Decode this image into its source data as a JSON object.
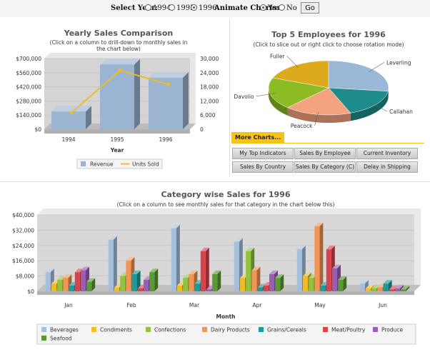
{
  "controls": {
    "select_year_label": "Select Year:",
    "years": [
      {
        "label": "1994",
        "selected": false
      },
      {
        "label": "1995",
        "selected": false
      },
      {
        "label": "1996",
        "selected": true
      }
    ],
    "animate_label": "Animate Charts:",
    "animate_options": [
      {
        "label": "Yes",
        "selected": true
      },
      {
        "label": "No",
        "selected": false
      }
    ],
    "go_label": "Go"
  },
  "yearly": {
    "title": "Yearly Sales Comparison",
    "subtitle_line1": "(Click on a column to drill-down to monthly sales in",
    "subtitle_line2": "the chart below)"
  },
  "employees": {
    "title": "Top 5 Employees for 1996",
    "subtitle": "(Click to slice out or right click to choose rotation mode)"
  },
  "more_charts": {
    "header": "More Charts...",
    "buttons": [
      "My Top Indicators",
      "Sales By Employee",
      "Current Inventory",
      "Sales By Country",
      "Sales By Category (C)",
      "Delay in Shipping"
    ]
  },
  "category": {
    "title": "Category wise Sales for 1996",
    "subtitle": "(Click on a column to see monthly sales for that category in the chart below this)"
  },
  "colors": {
    "accent": "#f6c417",
    "revenue": "#9ab4d2",
    "units": "#f0bc2c"
  },
  "chart_data": [
    {
      "type": "bar",
      "title": "Yearly Sales Comparison",
      "subtitle": "(Click on a column to drill-down to monthly sales in the chart below)",
      "categories": [
        "1994",
        "1995",
        "1996"
      ],
      "xlabel": "Year",
      "ylim": [
        0,
        700000
      ],
      "y_ticks": [
        "$0",
        "$140,000",
        "$280,000",
        "$420,000",
        "$560,000",
        "$700,000"
      ],
      "y2lim": [
        0,
        30000
      ],
      "y2_ticks": [
        "0",
        "6,000",
        "12,000",
        "18,000",
        "24,000",
        "30,000"
      ],
      "series": [
        {
          "name": "Revenue",
          "type": "bar",
          "axis": "primary",
          "values": [
            175000,
            640000,
            510000
          ]
        },
        {
          "name": "Units Sold",
          "type": "line",
          "axis": "secondary",
          "values": [
            7000,
            25000,
            19000
          ]
        }
      ],
      "legend": "bottom",
      "grid": true
    },
    {
      "type": "pie",
      "title": "Top 5 Employees for 1996",
      "subtitle": "(Click to slice out or right click to choose rotation mode)",
      "series": [
        {
          "name": "Leverling",
          "value": 27,
          "color": "#9ab8d6"
        },
        {
          "name": "Callahan",
          "value": 17,
          "color": "#1e8c8c"
        },
        {
          "name": "Peacock",
          "value": 18,
          "color": "#f3a37d"
        },
        {
          "name": "Davolio",
          "value": 19,
          "color": "#8cbb24"
        },
        {
          "name": "Fuller",
          "value": 19,
          "color": "#dcaa1c"
        }
      ]
    },
    {
      "type": "bar",
      "title": "Category wise Sales for 1996",
      "subtitle": "(Click on a column to see monthly sales for that category in the chart below this)",
      "categories": [
        "Jan",
        "Feb",
        "Mar",
        "Apr",
        "May",
        "Jun"
      ],
      "xlabel": "Month",
      "ylim": [
        0,
        40000
      ],
      "y_ticks": [
        "$0",
        "$8,000",
        "$16,000",
        "$24,000",
        "$32,000",
        "$40,000"
      ],
      "series": [
        {
          "name": "Beverages",
          "color": "#a4c0dd",
          "values": [
            10000,
            27000,
            33000,
            26000,
            22000,
            4000
          ]
        },
        {
          "name": "Condiments",
          "color": "#f0bc2c",
          "values": [
            4000,
            2000,
            3000,
            7000,
            8000,
            1500
          ]
        },
        {
          "name": "Confections",
          "color": "#92c23e",
          "values": [
            6000,
            8000,
            7000,
            21000,
            7000,
            1500
          ]
        },
        {
          "name": "Dairy Products",
          "color": "#f29556",
          "values": [
            7000,
            16000,
            9000,
            11000,
            34000,
            2000
          ]
        },
        {
          "name": "Grains/Cereals",
          "color": "#1f9a9a",
          "values": [
            3000,
            9000,
            4000,
            2000,
            3000,
            4000
          ]
        },
        {
          "name": "Meat/Poultry",
          "color": "#d9444c",
          "values": [
            10000,
            1500,
            21000,
            3000,
            22000,
            1000
          ]
        },
        {
          "name": "Produce",
          "color": "#9a5fb4",
          "values": [
            11000,
            6000,
            1000,
            9000,
            12000,
            1500
          ]
        },
        {
          "name": "Seafood",
          "color": "#5a9a34",
          "values": [
            5000,
            10000,
            9000,
            7000,
            6000,
            1000
          ]
        }
      ],
      "legend": "bottom",
      "grid": true
    }
  ]
}
